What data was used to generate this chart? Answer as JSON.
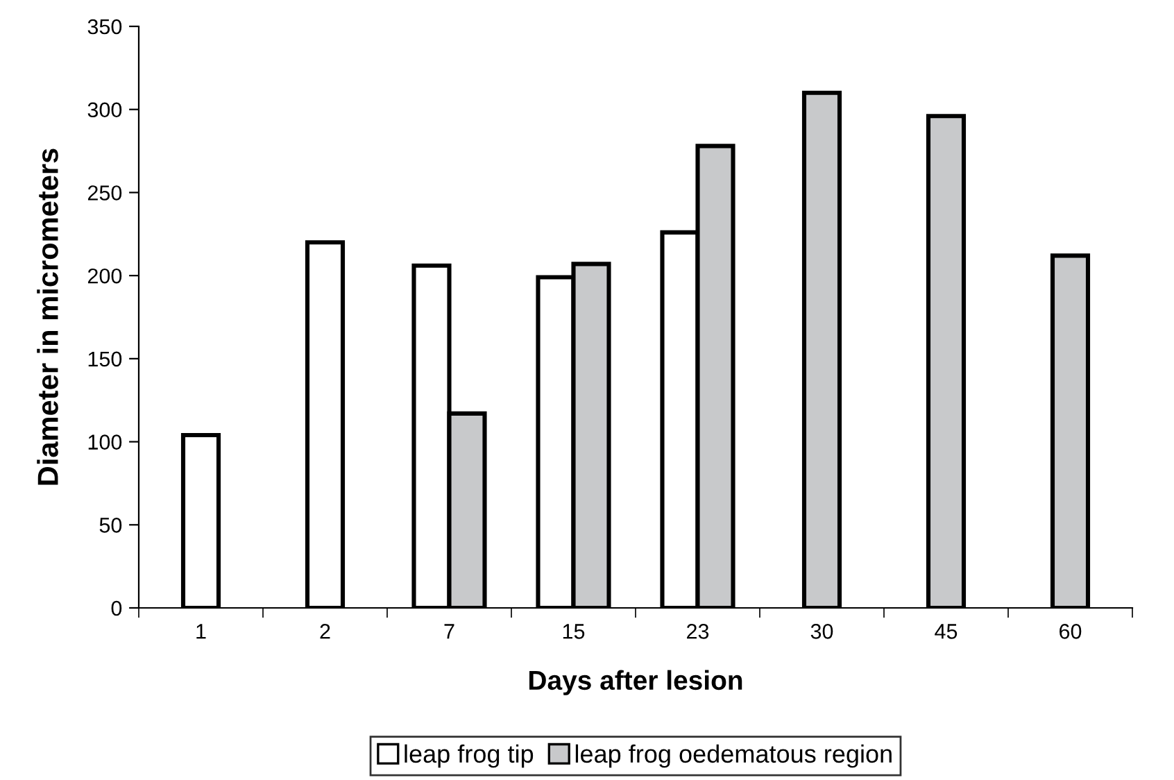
{
  "chart_data": {
    "type": "bar",
    "xlabel": "Days after lesion",
    "ylabel": "Diameter in micrometers",
    "categories": [
      "1",
      "2",
      "7",
      "15",
      "23",
      "30",
      "45",
      "60"
    ],
    "series": [
      {
        "name": "leap frog tip",
        "color": "#ffffff",
        "values": [
          104,
          220,
          206,
          199,
          226,
          null,
          null,
          null
        ]
      },
      {
        "name": "leap frog oedematous region",
        "color": "#c8c9cb",
        "values": [
          null,
          null,
          117,
          207,
          278,
          310,
          296,
          212
        ]
      }
    ],
    "ylim": [
      0,
      350
    ],
    "yticks": [
      0,
      50,
      100,
      150,
      200,
      250,
      300,
      350
    ],
    "grid": false,
    "legend": "bottom"
  }
}
